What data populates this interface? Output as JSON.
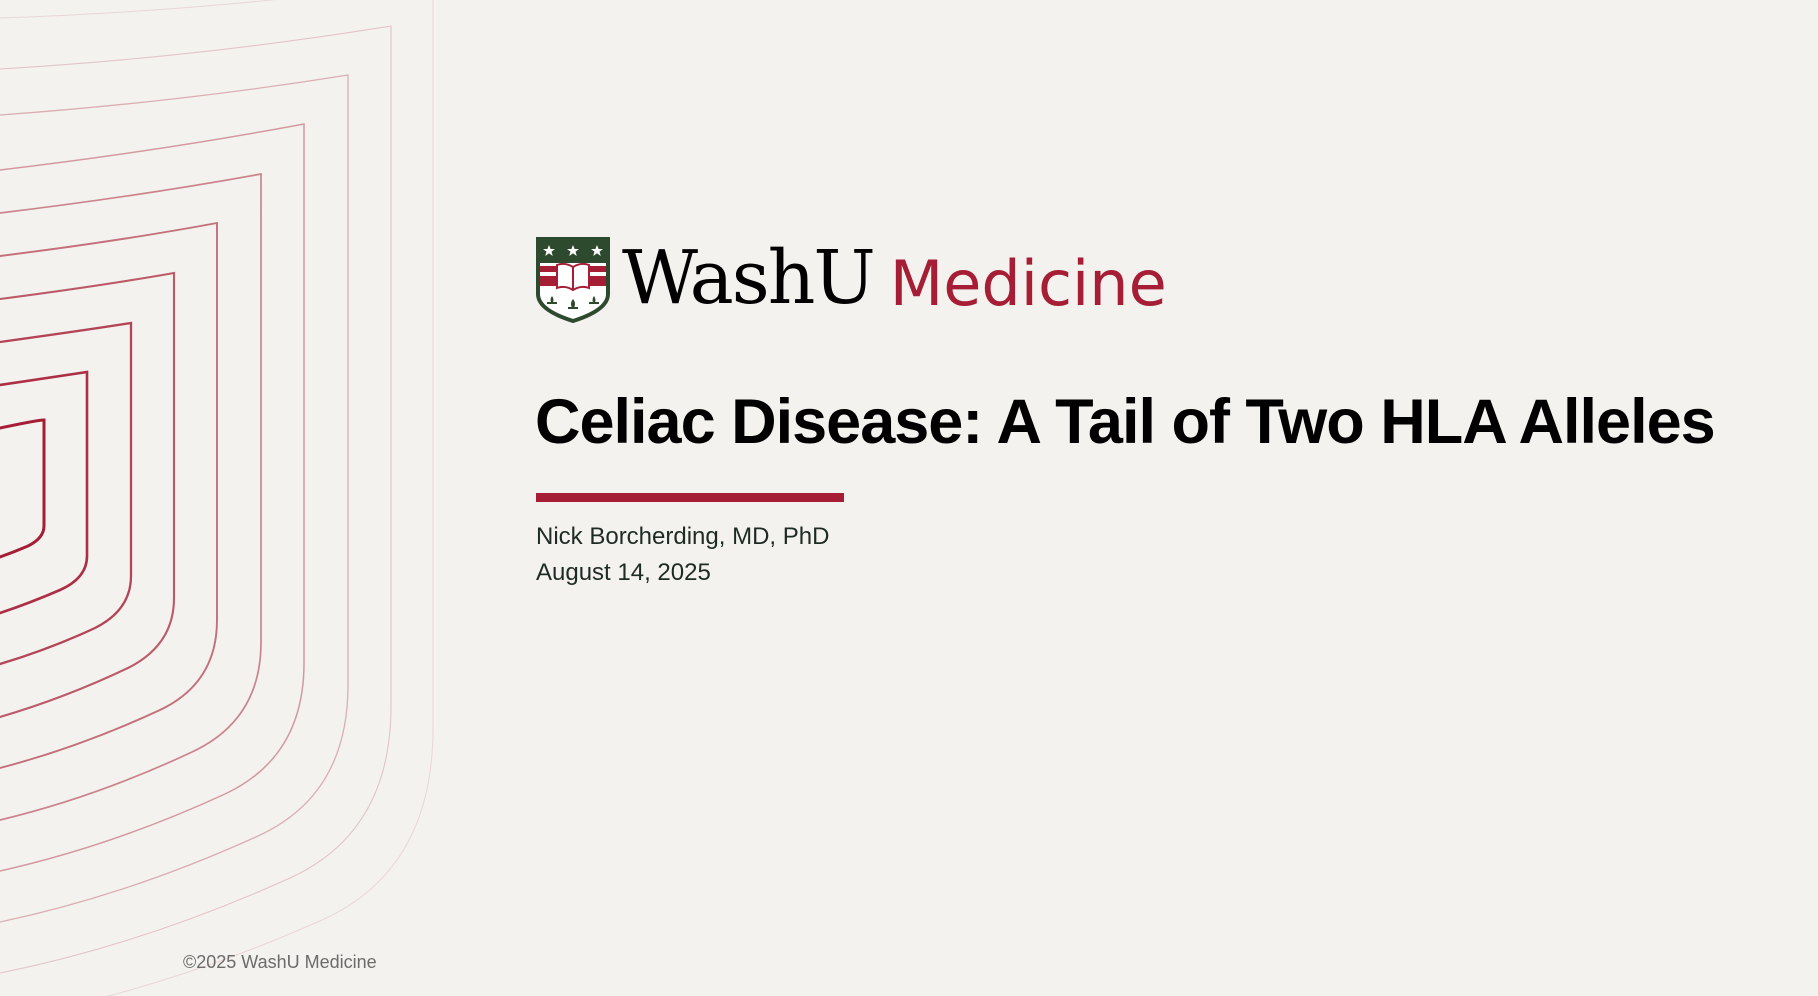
{
  "logo": {
    "wordmark": "WashU",
    "submark": "Medicine",
    "colors": {
      "green": "#2d4a2f",
      "red": "#a51e36",
      "cream": "#ffffff"
    }
  },
  "slide": {
    "title": "Celiac Disease: A Tail of Two HLA Alleles",
    "author": "Nick Borcherding, MD, PhD",
    "date": "August 14, 2025",
    "copyright": "©2025 WashU Medicine"
  },
  "colors": {
    "background": "#f4f2ee",
    "accent": "#a51e36",
    "title": "#000000",
    "body_text": "#1e2b24",
    "footer_text": "#6b6b6b"
  }
}
